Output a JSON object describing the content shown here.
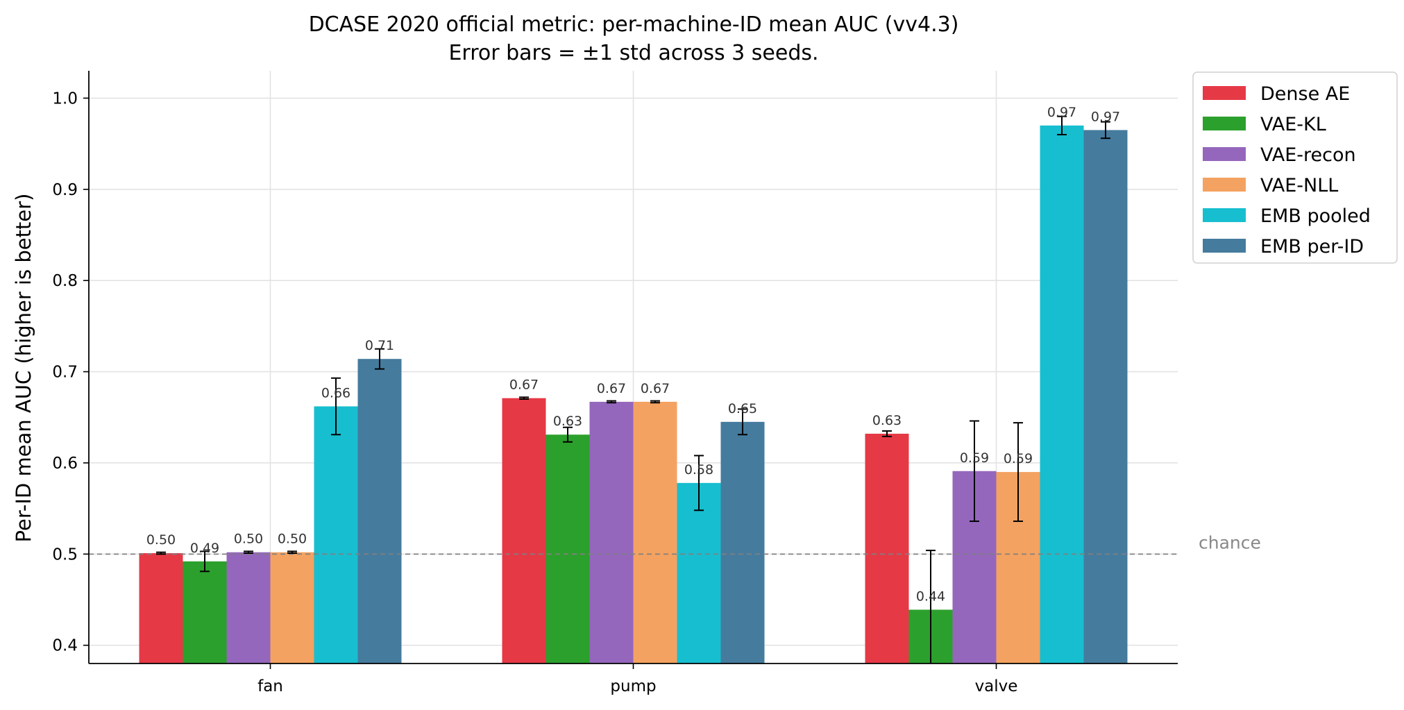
{
  "chart_data": {
    "type": "bar",
    "title": "DCASE 2020 official metric: per-machine-ID mean AUC  (vv4.3)",
    "subtitle": "Error bars = ±1 std across 3 seeds.",
    "xlabel": "",
    "ylabel": "Per-ID mean AUC  (higher is better)",
    "ylim": [
      0.38,
      1.03
    ],
    "yticks": [
      "0.4",
      "0.5",
      "0.6",
      "0.7",
      "0.8",
      "0.9",
      "1.0"
    ],
    "grid": true,
    "legend_position": "outside-top-right",
    "reference_line": {
      "value": 0.5,
      "label": "chance",
      "color": "#808080"
    },
    "categories": [
      "fan",
      "pump",
      "valve"
    ],
    "series": [
      {
        "name": "Dense AE",
        "color": "#e63946",
        "values": [
          0.501,
          0.671,
          0.632
        ],
        "errors": [
          0.001,
          0.001,
          0.003
        ],
        "labels": [
          "0.50",
          "0.67",
          "0.63"
        ]
      },
      {
        "name": "VAE-KL",
        "color": "#2ca02c",
        "values": [
          0.492,
          0.631,
          0.439
        ],
        "errors": [
          0.011,
          0.008,
          0.065
        ],
        "labels": [
          "0.49",
          "0.63",
          "0.44"
        ]
      },
      {
        "name": "VAE-recon",
        "color": "#9467bd",
        "values": [
          0.502,
          0.667,
          0.591
        ],
        "errors": [
          0.001,
          0.001,
          0.055
        ],
        "labels": [
          "0.50",
          "0.67",
          "0.59"
        ]
      },
      {
        "name": "VAE-NLL",
        "color": "#f4a261",
        "values": [
          0.502,
          0.667,
          0.59
        ],
        "errors": [
          0.001,
          0.001,
          0.054
        ],
        "labels": [
          "0.50",
          "0.67",
          "0.59"
        ]
      },
      {
        "name": "EMB pooled",
        "color": "#17becf",
        "values": [
          0.662,
          0.578,
          0.97
        ],
        "errors": [
          0.031,
          0.03,
          0.01
        ],
        "labels": [
          "0.66",
          "0.58",
          "0.97"
        ]
      },
      {
        "name": "EMB per-ID",
        "color": "#457b9d",
        "values": [
          0.714,
          0.645,
          0.965
        ],
        "errors": [
          0.011,
          0.014,
          0.009
        ],
        "labels": [
          "0.71",
          "0.65",
          "0.97"
        ]
      }
    ]
  }
}
